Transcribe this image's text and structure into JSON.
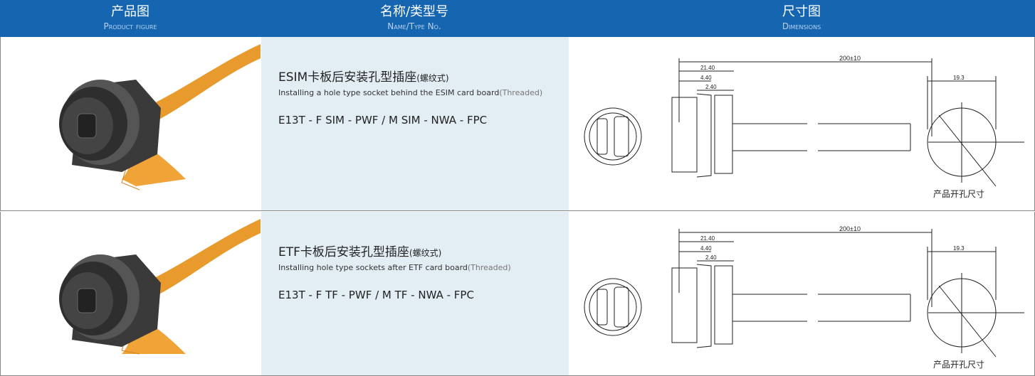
{
  "header": {
    "columns": [
      {
        "title": "产品图",
        "subtitle": "Product figure"
      },
      {
        "title": "名称/类型号",
        "subtitle": "Name/Type No."
      },
      {
        "title": "尺寸图",
        "subtitle": "Dimensions"
      }
    ]
  },
  "rows": [
    {
      "name_cn": "ESIM卡板后安装孔型插座",
      "name_cn_note": "(螺纹式)",
      "name_en": "Installing a hole type socket behind the ESIM card board",
      "name_en_note": "(Threaded)",
      "model": "E13T - F SIM - PWF / M SIM - NWA - FPC",
      "dimensions": {
        "overall": "200±10",
        "d1": "21.40",
        "d2": "4.40",
        "d3": "2.40",
        "hole": "19.3",
        "hole_caption": "产品开孔尺寸"
      }
    },
    {
      "name_cn": "ETF卡板后安装孔型插座",
      "name_cn_note": "(螺纹式)",
      "name_en": "Installing hole type sockets after ETF card board",
      "name_en_note": "(Threaded)",
      "model": "E13T - F TF - PWF / M TF - NWA - FPC",
      "dimensions": {
        "overall": "200±10",
        "d1": "21.40",
        "d2": "4.40",
        "d3": "2.40",
        "hole": "19.3",
        "hole_caption": "产品开孔尺寸"
      }
    }
  ]
}
